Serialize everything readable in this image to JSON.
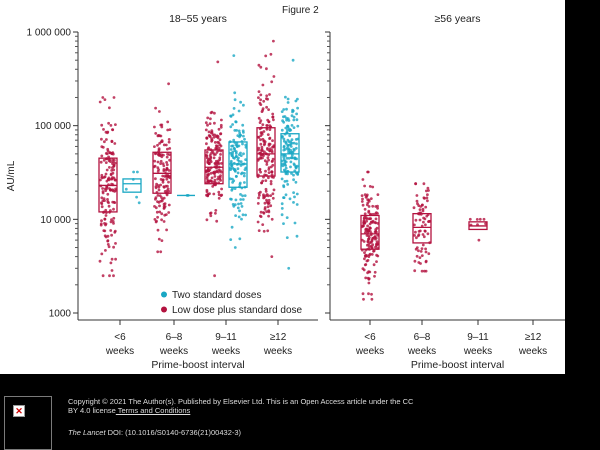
{
  "figure_label": "Figure 2",
  "colors": {
    "low_dose": "#b3123f",
    "two_standard": "#19a7c4",
    "background": "#000000"
  },
  "chart_data": [
    {
      "type": "box-strip",
      "title": "18–55 years",
      "ylabel": "AU/mL",
      "yscale": "log",
      "ylim": [
        700,
        1000000
      ],
      "yticks": [
        1000,
        10000,
        100000,
        1000000
      ],
      "ytick_labels": [
        "1000",
        "10 000",
        "100 000",
        "1 000 000"
      ],
      "categories": [
        "<6 weeks",
        "6–8 weeks",
        "9–11 weeks",
        "≥12 weeks"
      ],
      "category_lines": [
        [
          "<6",
          "weeks"
        ],
        [
          "6–8",
          "weeks"
        ],
        [
          "9–11",
          "weeks"
        ],
        [
          "≥12",
          "weeks"
        ]
      ],
      "xlabel": "Prime-boost interval",
      "legend": {
        "position": "bottom-right",
        "entries": [
          "Two standard doses",
          "Low dose plus standard dose"
        ]
      },
      "series": [
        {
          "name": "Low dose plus standard dose",
          "boxes": [
            {
              "category": "<6 weeks",
              "q1": 12000,
              "median": 23000,
              "q3": 45000,
              "min": 2500,
              "max": 200000
            },
            {
              "category": "6–8 weeks",
              "q1": 19000,
              "median": 31000,
              "q3": 52000,
              "min": 4500,
              "max": 280000
            },
            {
              "category": "9–11 weeks",
              "q1": 24000,
              "median": 36000,
              "q3": 55000,
              "min": 2500,
              "max": 480000
            },
            {
              "category": "≥12 weeks",
              "q1": 29000,
              "median": 50000,
              "q3": 95000,
              "min": 4000,
              "max": 800000
            }
          ]
        },
        {
          "name": "Two standard doses",
          "boxes": [
            {
              "category": "<6 weeks",
              "q1": 19500,
              "median": 24000,
              "q3": 27000,
              "min": 15000,
              "max": 32000
            },
            {
              "category": "6–8 weeks",
              "q1": 18000,
              "median": 18000,
              "q3": 18000,
              "min": 18000,
              "max": 18000
            },
            {
              "category": "9–11 weeks",
              "q1": 22000,
              "median": 39000,
              "q3": 67000,
              "min": 5000,
              "max": 560000
            },
            {
              "category": "≥12 weeks",
              "q1": 32000,
              "median": 50000,
              "q3": 82000,
              "min": 3000,
              "max": 500000
            }
          ]
        }
      ]
    },
    {
      "type": "box-strip",
      "title": "≥56 years",
      "yscale": "log",
      "ylim": [
        700,
        1000000
      ],
      "categories": [
        "<6 weeks",
        "6–8 weeks",
        "9–11 weeks",
        "≥12 weeks"
      ],
      "category_lines": [
        [
          "<6",
          "weeks"
        ],
        [
          "6–8",
          "weeks"
        ],
        [
          "9–11",
          "weeks"
        ],
        [
          "≥12",
          "weeks"
        ]
      ],
      "xlabel": "Prime-boost interval",
      "series": [
        {
          "name": "Low dose plus standard dose",
          "boxes": [
            {
              "category": "<6 weeks",
              "q1": 4800,
              "median": 7000,
              "q3": 11000,
              "min": 1400,
              "max": 32000
            },
            {
              "category": "6–8 weeks",
              "q1": 5600,
              "median": 8200,
              "q3": 11500,
              "min": 2800,
              "max": 24000
            },
            {
              "category": "9–11 weeks",
              "q1": 7800,
              "median": 8500,
              "q3": 9400,
              "min": 6000,
              "max": 10000
            }
          ]
        }
      ]
    }
  ],
  "footer": {
    "copyright_line1": "Copyright © 2021 The Author(s). Published by Elsevier Ltd. This is an Open Access article under the CC",
    "copyright_line2_prefix": "BY 4.0 license",
    "terms_link": " Terms and Conditions",
    "journal": "The Lancet",
    "doi": " DOI: (10.1016/S0140-6736(21)00432-3)"
  }
}
